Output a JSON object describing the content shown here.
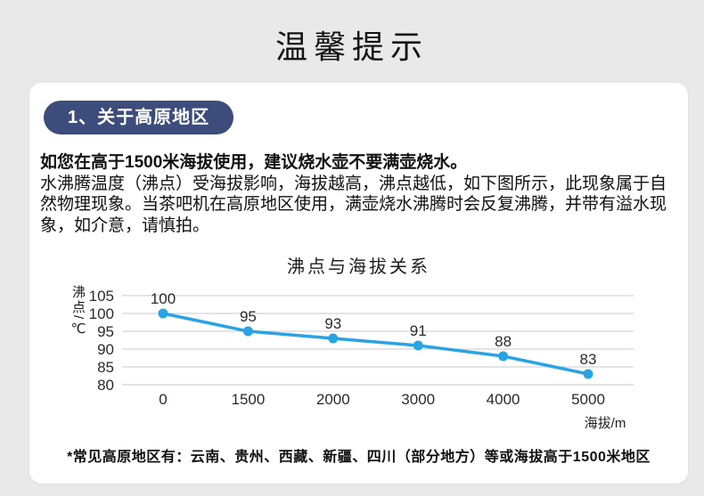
{
  "page": {
    "title": "温馨提示",
    "background_color": "#e9e9e9",
    "card_color": "#ffffff"
  },
  "card": {
    "badge_label": "1、关于高原地区",
    "badge_color": "#3d4d7b",
    "intro_bold": "如您在高于1500米海拔使用，建议烧水壶不要满壶烧水。",
    "intro_body": "水沸腾温度（沸点）受海拔影响，海拔越高，沸点越低，如下图所示，此现象属于自然物理现象。当茶吧机在高原地区使用，满壶烧水沸腾时会反复沸腾，并带有溢水现象，如介意，请慎拍。",
    "footnote": "*常见高原地区有：云南、贵州、西藏、新疆、四川（部分地方）等或海拔高于1500米地区"
  },
  "chart_data": {
    "type": "line",
    "title": "沸点与海拔关系",
    "xlabel": "海拔/m",
    "ylabel": "沸点/℃",
    "categories": [
      "0",
      "1500",
      "2000",
      "3000",
      "4000",
      "5000"
    ],
    "series": [
      {
        "name": "沸点",
        "values": [
          100,
          95,
          93,
          91,
          88,
          83
        ]
      }
    ],
    "ylim": [
      80,
      105
    ],
    "yticks": [
      105,
      100,
      95,
      90,
      85,
      80
    ],
    "grid": true,
    "legend": false,
    "data_labels": true,
    "colors": {
      "line": "#29a3e3",
      "grid": "#c9c9c9",
      "tick_text": "#2a2a2a",
      "label_text": "#1d1d1d"
    }
  }
}
